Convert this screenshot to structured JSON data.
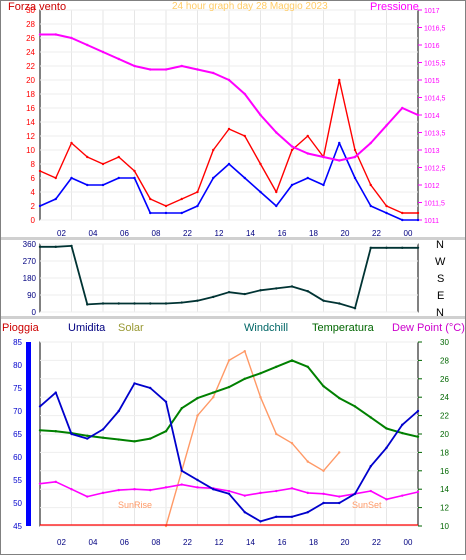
{
  "header": {
    "title": "24 hour graph day 28 Maggio 2023",
    "left_label": "Forza vento",
    "right_label": "Pressione"
  },
  "panel2": {
    "direction_labels": [
      "N",
      "W",
      "S",
      "E",
      "N"
    ]
  },
  "panel3": {
    "labels": [
      "Pioggia",
      "Umidita",
      "Solar",
      "Windchill",
      "Temperatura",
      "Dew Point (°C)"
    ],
    "sunrise": "SunRise",
    "sunset": "SunSet"
  },
  "colors": {
    "wind_speed": "#ff0000",
    "wind_avg": "#0000ff",
    "pressure": "#ff00ff",
    "direction": "#003333",
    "humidity": "#0000cc",
    "solar": "#ff9966",
    "temperature": "#008000",
    "dewpoint": "#ff00ff",
    "rain": "#ff0000"
  },
  "chart_data": [
    {
      "type": "line",
      "title": "24 hour graph day 28 Maggio 2023",
      "xticks": [
        "02",
        "04",
        "06",
        "08",
        "22",
        "12",
        "14",
        "16",
        "18",
        "20",
        "22",
        "00"
      ],
      "ylabel": "Forza vento",
      "y2label": "Pressione",
      "ylim": [
        0,
        30
      ],
      "yticks": [
        0,
        2,
        4,
        6,
        8,
        10,
        12,
        14,
        16,
        18,
        20,
        22,
        24,
        26,
        28,
        30
      ],
      "y2lim": [
        1011,
        1017
      ],
      "y2ticks": [
        "1011",
        "1011,5",
        "1012",
        "1012,5",
        "1013",
        "1013,5",
        "1014",
        "1014,5",
        "1015",
        "1015,5",
        "1016",
        "1016,5",
        "1017"
      ],
      "x": [
        0,
        1,
        2,
        3,
        4,
        5,
        6,
        7,
        8,
        9,
        10,
        11,
        12,
        13,
        14,
        15,
        16,
        17,
        18,
        19,
        20,
        21,
        22,
        23,
        24
      ],
      "series": [
        {
          "name": "Forza vento",
          "values": [
            7,
            6,
            11,
            9,
            8,
            9,
            7,
            3,
            2,
            3,
            4,
            10,
            13,
            12,
            8,
            4,
            10,
            12,
            9,
            20,
            10,
            5,
            2,
            1,
            1
          ]
        },
        {
          "name": "Forza vento media",
          "values": [
            2,
            3,
            6,
            5,
            5,
            6,
            6,
            1,
            1,
            1,
            2,
            6,
            8,
            6,
            4,
            2,
            5,
            6,
            5,
            11,
            6,
            2,
            1,
            0,
            0
          ]
        },
        {
          "name": "Pressione",
          "values": [
            1016.3,
            1016.3,
            1016.2,
            1016.0,
            1015.8,
            1015.6,
            1015.4,
            1015.3,
            1015.3,
            1015.4,
            1015.3,
            1015.2,
            1015.0,
            1014.6,
            1014.0,
            1013.5,
            1013.1,
            1012.9,
            1012.8,
            1012.7,
            1012.8,
            1013.2,
            1013.7,
            1014.2,
            1014.0
          ]
        }
      ]
    },
    {
      "type": "line",
      "ylim": [
        0,
        360
      ],
      "yticks": [
        0,
        90,
        180,
        270,
        360
      ],
      "x": [
        0,
        1,
        2,
        3,
        4,
        5,
        6,
        7,
        8,
        9,
        10,
        11,
        12,
        13,
        14,
        15,
        16,
        17,
        18,
        19,
        20,
        21,
        22,
        23,
        24
      ],
      "series": [
        {
          "name": "Direzione vento",
          "values": [
            345,
            345,
            350,
            40,
            45,
            45,
            45,
            45,
            45,
            50,
            60,
            80,
            105,
            95,
            115,
            125,
            135,
            110,
            60,
            45,
            20,
            340,
            340,
            340,
            340
          ]
        }
      ]
    },
    {
      "type": "line",
      "xticks": [
        "02",
        "04",
        "06",
        "08",
        "22",
        "12",
        "14",
        "16",
        "18",
        "20",
        "22",
        "00"
      ],
      "ylim": [
        45,
        85
      ],
      "yticks": [
        45,
        50,
        55,
        60,
        65,
        70,
        75,
        80,
        85
      ],
      "y2lim": [
        10,
        30
      ],
      "y2ticks": [
        10,
        12,
        14,
        16,
        18,
        20,
        22,
        24,
        26,
        28,
        30
      ],
      "x": [
        0,
        1,
        2,
        3,
        4,
        5,
        6,
        7,
        8,
        9,
        10,
        11,
        12,
        13,
        14,
        15,
        16,
        17,
        18,
        19,
        20,
        21,
        22,
        23,
        24
      ],
      "series": [
        {
          "name": "Umidita",
          "values": [
            71,
            74,
            65,
            64,
            66,
            70,
            76,
            75,
            72,
            57,
            55,
            53,
            52,
            48,
            46,
            47,
            47,
            48,
            50,
            50,
            52,
            58,
            62,
            67,
            70
          ]
        },
        {
          "name": "Temperatura",
          "values": [
            20.4,
            20.3,
            20.1,
            19.8,
            19.6,
            19.4,
            19.2,
            19.5,
            20.3,
            22.8,
            23.9,
            24.5,
            25.1,
            26.0,
            26.6,
            27.3,
            28.0,
            27.3,
            25.2,
            23.9,
            23.0,
            21.8,
            20.6,
            20.1,
            19.7
          ]
        },
        {
          "name": "Dew Point",
          "values": [
            14.6,
            14.8,
            14.0,
            13.2,
            13.6,
            13.9,
            14.0,
            13.9,
            14.2,
            14.5,
            14.2,
            14.1,
            13.8,
            13.3,
            13.6,
            13.8,
            14.1,
            13.6,
            13.5,
            13.2,
            13.5,
            13.8,
            12.9,
            13.3,
            13.7
          ]
        },
        {
          "name": "Solar",
          "values": [
            null,
            null,
            null,
            null,
            null,
            null,
            null,
            null,
            10,
            16,
            22,
            24,
            28,
            29,
            24,
            20,
            19,
            17,
            16,
            18,
            null,
            null,
            null,
            null,
            null
          ]
        },
        {
          "name": "Pioggia",
          "values": [
            0,
            0,
            0,
            0,
            0,
            0,
            0,
            0,
            0,
            0,
            0,
            0,
            0,
            0,
            0,
            0,
            0,
            0,
            0,
            0,
            0,
            0,
            0,
            0,
            0
          ]
        }
      ]
    }
  ]
}
